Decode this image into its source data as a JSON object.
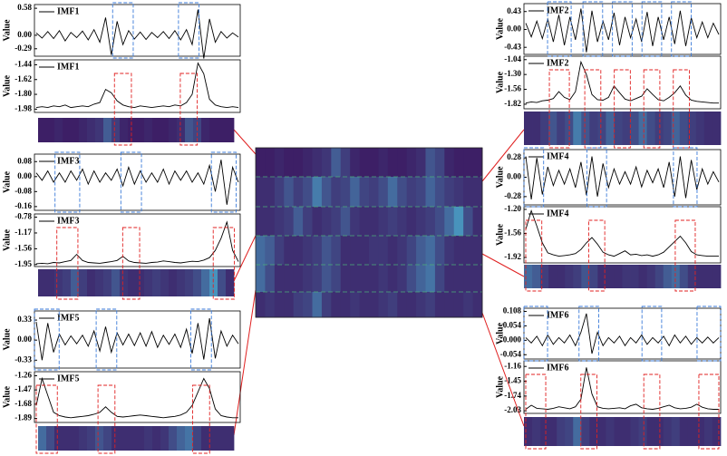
{
  "chart_data": [
    {
      "type": "line",
      "ylabel": "Value",
      "ylim": [
        -0.45,
        0.66
      ],
      "yticks": [
        0.58,
        {
          "value": 0,
          "label": "0.00"
        },
        -0.29
      ],
      "series": [
        {
          "name": "IMF1",
          "color": "#000000",
          "values": [
            0.05,
            -0.06,
            0.08,
            -0.07,
            0.1,
            -0.12,
            0.06,
            -0.05,
            0.09,
            -0.1,
            0.12,
            -0.15,
            0.38,
            -0.42,
            0.3,
            -0.2,
            0.1,
            -0.08,
            0.07,
            -0.09,
            0.06,
            -0.05,
            0.08,
            -0.07,
            0.1,
            -0.1,
            0.12,
            -0.2,
            0.55,
            -0.5,
            0.35,
            -0.15,
            0.08,
            -0.06,
            0.05,
            -0.04
          ]
        }
      ]
    },
    {
      "type": "line",
      "ylabel": "Value",
      "ylim": [
        -2.02,
        -1.38
      ],
      "yticks": [
        -1.44,
        -1.62,
        {
          "value": -1.8,
          "label": "-1.80"
        },
        -1.98
      ],
      "series": [
        {
          "name": "IMF1",
          "color": "#000000",
          "values": [
            -1.96,
            -1.95,
            -1.96,
            -1.94,
            -1.95,
            -1.93,
            -1.96,
            -1.95,
            -1.94,
            -1.95,
            -1.92,
            -1.9,
            -1.74,
            -1.78,
            -1.88,
            -1.93,
            -1.95,
            -1.96,
            -1.94,
            -1.95,
            -1.96,
            -1.95,
            -1.94,
            -1.95,
            -1.93,
            -1.94,
            -1.9,
            -1.8,
            -1.42,
            -1.55,
            -1.86,
            -1.93,
            -1.95,
            -1.96,
            -1.95,
            -1.96
          ]
        }
      ]
    },
    {
      "type": "heatmap",
      "values": [
        0.1,
        0.1,
        0.15,
        0.1,
        0.1,
        0.15,
        0.2,
        0.25,
        0.5,
        0.3,
        0.15,
        0.1,
        0.1,
        0.15,
        0.1,
        0.1,
        0.15,
        0.2,
        0.45,
        0.35,
        0.15,
        0.1,
        0.1,
        0.1
      ]
    },
    {
      "type": "line",
      "ylabel": "Value",
      "ylim": [
        -0.6,
        0.62
      ],
      "yticks": [
        0.43,
        {
          "value": 0,
          "label": "0.00"
        },
        -0.43
      ],
      "series": [
        {
          "name": "IMF2",
          "color": "#000000",
          "values": [
            0.15,
            -0.18,
            0.2,
            -0.22,
            0.25,
            -0.3,
            0.35,
            -0.38,
            0.3,
            -0.25,
            0.5,
            -0.55,
            0.45,
            -0.3,
            0.2,
            -0.25,
            0.4,
            -0.38,
            0.3,
            -0.2,
            0.25,
            -0.3,
            0.42,
            -0.4,
            0.3,
            -0.25,
            0.3,
            -0.35,
            0.45,
            -0.4,
            0.28,
            -0.2,
            0.18,
            -0.2,
            0.15,
            -0.12
          ]
        }
      ]
    },
    {
      "type": "line",
      "ylabel": "Value",
      "ylim": [
        -1.9,
        -0.98
      ],
      "yticks": [
        -1.04,
        {
          "value": -1.3,
          "label": "-1.30"
        },
        -1.56,
        -1.82
      ],
      "series": [
        {
          "name": "IMF2",
          "color": "#000000",
          "values": [
            -1.8,
            -1.78,
            -1.79,
            -1.76,
            -1.75,
            -1.72,
            -1.6,
            -1.7,
            -1.74,
            -1.6,
            -1.08,
            -1.3,
            -1.65,
            -1.74,
            -1.75,
            -1.7,
            -1.5,
            -1.62,
            -1.73,
            -1.76,
            -1.72,
            -1.68,
            -1.55,
            -1.65,
            -1.74,
            -1.76,
            -1.7,
            -1.62,
            -1.5,
            -1.66,
            -1.75,
            -1.77,
            -1.78,
            -1.79,
            -1.8,
            -1.8
          ]
        }
      ]
    },
    {
      "type": "heatmap",
      "values": [
        0.2,
        0.2,
        0.3,
        0.45,
        0.3,
        0.4,
        0.7,
        0.45,
        0.3,
        0.35,
        0.55,
        0.35,
        0.3,
        0.4,
        0.6,
        0.4,
        0.3,
        0.35,
        0.55,
        0.4,
        0.3,
        0.25,
        0.2,
        0.2
      ]
    },
    {
      "type": "line",
      "ylabel": "Value",
      "ylim": [
        -0.18,
        0.12
      ],
      "yticks": [
        0.08,
        {
          "value": 0,
          "label": "0.00"
        },
        -0.08,
        -0.16
      ],
      "series": [
        {
          "name": "IMF3",
          "color": "#000000",
          "values": [
            0.02,
            -0.02,
            0.03,
            -0.03,
            0.02,
            -0.03,
            0.03,
            -0.02,
            0.04,
            -0.04,
            0.03,
            -0.03,
            0.02,
            -0.02,
            0.04,
            -0.05,
            0.05,
            -0.04,
            0.03,
            -0.03,
            0.02,
            -0.03,
            0.04,
            -0.04,
            0.03,
            -0.02,
            0.03,
            -0.03,
            0.02,
            -0.04,
            0.06,
            -0.08,
            0.09,
            -0.15,
            0.05,
            -0.03
          ]
        }
      ]
    },
    {
      "type": "line",
      "ylabel": "Value",
      "ylim": [
        -2.0,
        -0.7
      ],
      "yticks": [
        -0.78,
        -1.17,
        -1.56,
        -1.95
      ],
      "series": [
        {
          "name": "IMF3",
          "color": "#000000",
          "values": [
            -1.93,
            -1.92,
            -1.93,
            -1.9,
            -1.91,
            -1.88,
            -1.85,
            -1.7,
            -1.85,
            -1.9,
            -1.91,
            -1.92,
            -1.9,
            -1.88,
            -1.85,
            -1.75,
            -1.86,
            -1.9,
            -1.91,
            -1.92,
            -1.9,
            -1.89,
            -1.86,
            -1.88,
            -1.9,
            -1.91,
            -1.89,
            -1.87,
            -1.88,
            -1.84,
            -1.78,
            -1.6,
            -1.3,
            -0.9,
            -1.6,
            -1.88
          ]
        }
      ]
    },
    {
      "type": "heatmap",
      "values": [
        0.2,
        0.2,
        0.25,
        0.3,
        0.5,
        0.3,
        0.2,
        0.25,
        0.3,
        0.45,
        0.25,
        0.2,
        0.2,
        0.25,
        0.3,
        0.25,
        0.2,
        0.25,
        0.3,
        0.4,
        0.6,
        0.85,
        0.4,
        0.2
      ]
    },
    {
      "type": "line",
      "ylabel": "Value",
      "ylim": [
        -0.4,
        0.4
      ],
      "yticks": [
        0.28,
        {
          "value": 0,
          "label": "0.00"
        },
        -0.28
      ],
      "series": [
        {
          "name": "IMF4",
          "color": "#000000",
          "values": [
            0.3,
            -0.32,
            0.28,
            -0.25,
            0.15,
            -0.12,
            0.1,
            -0.1,
            0.12,
            -0.15,
            0.22,
            -0.26,
            0.3,
            -0.28,
            0.2,
            -0.15,
            0.12,
            -0.1,
            0.08,
            -0.1,
            0.15,
            -0.14,
            0.1,
            -0.08,
            0.12,
            -0.15,
            0.22,
            -0.28,
            0.3,
            -0.3,
            0.25,
            -0.18,
            0.12,
            -0.1,
            0.08,
            -0.07
          ]
        }
      ]
    },
    {
      "type": "line",
      "ylabel": "Value",
      "ylim": [
        -2.0,
        -1.16
      ],
      "yticks": [
        {
          "value": -1.2,
          "label": "-1.20"
        },
        -1.56,
        -1.92
      ],
      "series": [
        {
          "name": "IMF4",
          "color": "#000000",
          "values": [
            -1.5,
            -1.22,
            -1.45,
            -1.7,
            -1.85,
            -1.88,
            -1.9,
            -1.89,
            -1.88,
            -1.86,
            -1.8,
            -1.7,
            -1.62,
            -1.72,
            -1.84,
            -1.88,
            -1.9,
            -1.86,
            -1.82,
            -1.88,
            -1.87,
            -1.89,
            -1.88,
            -1.9,
            -1.88,
            -1.84,
            -1.76,
            -1.68,
            -1.6,
            -1.7,
            -1.83,
            -1.88,
            -1.89,
            -1.9,
            -1.9,
            -1.9
          ]
        }
      ]
    },
    {
      "type": "heatmap",
      "values": [
        0.6,
        0.5,
        0.3,
        0.2,
        0.2,
        0.25,
        0.3,
        0.45,
        0.35,
        0.2,
        0.2,
        0.2,
        0.25,
        0.25,
        0.2,
        0.25,
        0.35,
        0.5,
        0.6,
        0.4,
        0.25,
        0.2,
        0.2,
        0.2
      ]
    },
    {
      "type": "line",
      "ylabel": "Value",
      "ylim": [
        -0.46,
        0.48
      ],
      "yticks": [
        0.33,
        {
          "value": 0,
          "label": "0.00"
        },
        -0.33
      ],
      "series": [
        {
          "name": "IMF5",
          "color": "#000000",
          "values": [
            0.3,
            -0.33,
            0.28,
            -0.2,
            0.1,
            -0.08,
            0.07,
            -0.06,
            0.08,
            -0.1,
            0.15,
            -0.18,
            0.22,
            -0.2,
            0.12,
            -0.08,
            0.1,
            -0.09,
            0.12,
            -0.1,
            0.14,
            -0.12,
            0.08,
            -0.07,
            0.1,
            -0.12,
            0.18,
            -0.22,
            0.28,
            -0.32,
            0.36,
            -0.3,
            0.15,
            -0.1,
            0.08,
            -0.06
          ]
        }
      ]
    },
    {
      "type": "line",
      "ylabel": "Value",
      "ylim": [
        -1.95,
        -1.2
      ],
      "yticks": [
        -1.26,
        -1.47,
        -1.68,
        -1.89
      ],
      "series": [
        {
          "name": "IMF5",
          "color": "#000000",
          "values": [
            -1.7,
            -1.3,
            -1.55,
            -1.8,
            -1.85,
            -1.87,
            -1.88,
            -1.87,
            -1.86,
            -1.85,
            -1.83,
            -1.8,
            -1.72,
            -1.8,
            -1.86,
            -1.87,
            -1.86,
            -1.85,
            -1.84,
            -1.85,
            -1.86,
            -1.87,
            -1.88,
            -1.87,
            -1.86,
            -1.84,
            -1.8,
            -1.7,
            -1.5,
            -1.3,
            -1.45,
            -1.75,
            -1.85,
            -1.87,
            -1.88,
            -1.88
          ]
        }
      ]
    },
    {
      "type": "heatmap",
      "values": [
        0.6,
        0.4,
        0.2,
        0.2,
        0.2,
        0.25,
        0.3,
        0.45,
        0.35,
        0.2,
        0.2,
        0.2,
        0.2,
        0.25,
        0.2,
        0.25,
        0.4,
        0.55,
        0.65,
        0.35,
        0.2,
        0.2,
        0.2,
        0.2
      ]
    },
    {
      "type": "line",
      "ylabel": "Value",
      "ylim": [
        -0.07,
        0.12
      ],
      "yticks": [
        0.108,
        0.054,
        {
          "value": 0,
          "label": "0.000"
        },
        -0.054
      ],
      "series": [
        {
          "name": "IMF6",
          "color": "#000000",
          "values": [
            0.01,
            -0.01,
            0.015,
            -0.02,
            0.02,
            -0.015,
            0.01,
            -0.01,
            0.02,
            -0.02,
            0.03,
            0.1,
            -0.05,
            0.03,
            -0.02,
            0.01,
            -0.01,
            0.015,
            -0.02,
            0.01,
            -0.01,
            0.02,
            -0.015,
            0.01,
            -0.01,
            0.015,
            -0.02,
            0.02,
            -0.01,
            0.015,
            -0.015,
            0.01,
            -0.01,
            0.012,
            -0.01,
            0.01
          ]
        }
      ]
    },
    {
      "type": "line",
      "ylabel": "Value",
      "ylim": [
        -2.08,
        -1.05
      ],
      "yticks": [
        -1.16,
        -1.45,
        -1.74,
        -2.03
      ],
      "series": [
        {
          "name": "IMF6",
          "color": "#000000",
          "values": [
            -2.0,
            -1.92,
            -1.98,
            -1.99,
            -2.0,
            -1.98,
            -1.95,
            -1.97,
            -1.99,
            -1.95,
            -1.8,
            -1.18,
            -1.7,
            -1.95,
            -1.98,
            -1.99,
            -1.98,
            -1.97,
            -1.99,
            -1.93,
            -1.9,
            -1.97,
            -1.99,
            -2.0,
            -1.98,
            -1.95,
            -1.92,
            -1.97,
            -1.99,
            -1.98,
            -1.96,
            -1.9,
            -1.96,
            -1.99,
            -2.0,
            -2.0
          ]
        }
      ]
    },
    {
      "type": "heatmap",
      "values": [
        0.2,
        0.25,
        0.2,
        0.2,
        0.3,
        0.35,
        0.6,
        0.3,
        0.2,
        0.2,
        0.25,
        0.2,
        0.2,
        0.25,
        0.3,
        0.2,
        0.2,
        0.25,
        0.3,
        0.2,
        0.2,
        0.2,
        0.25,
        0.2
      ]
    }
  ]
}
